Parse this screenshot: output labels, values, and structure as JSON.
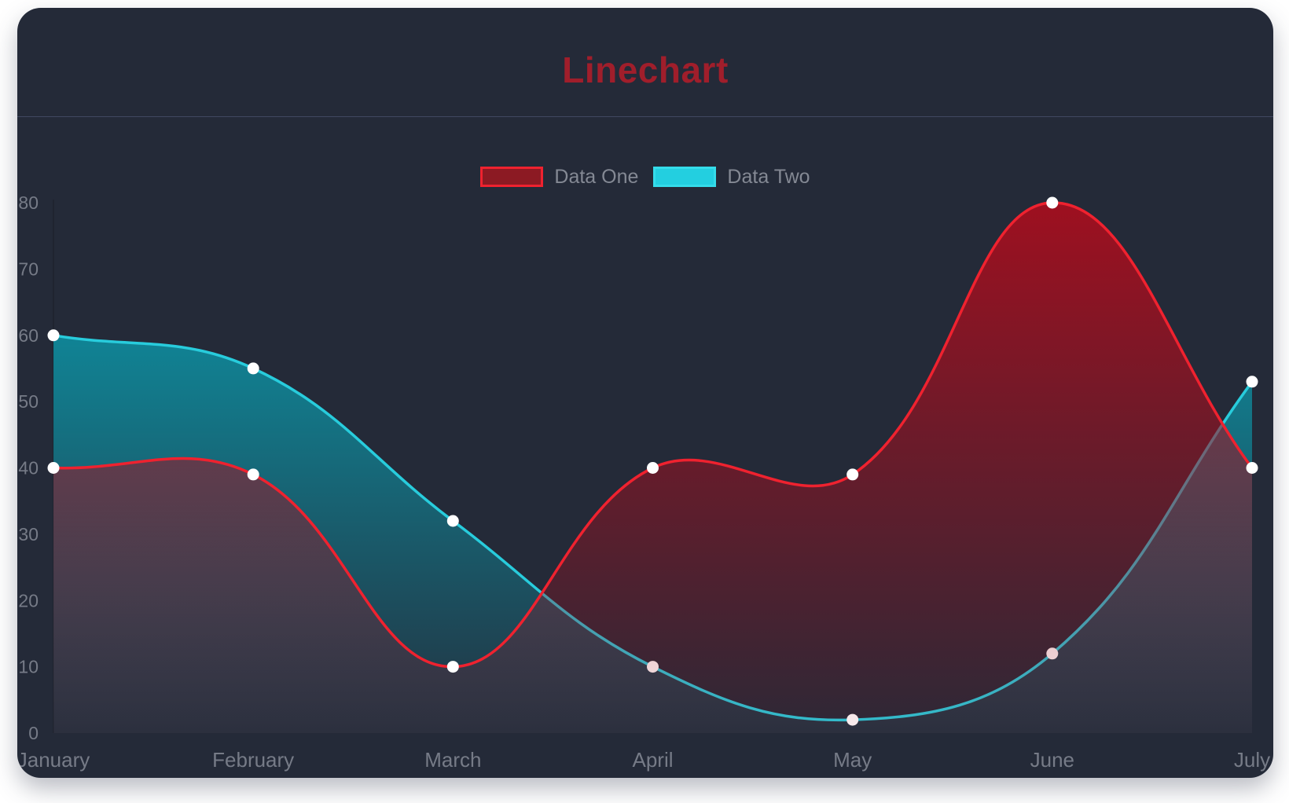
{
  "card": {
    "title": "Linechart",
    "colors": {
      "page_background": "#ffffff",
      "card_background": "#242a38",
      "title": "#a01e2b",
      "divider": "#414861",
      "axis_label": "#767b87",
      "legend_label": "#848994",
      "axis_line": "rgba(0,0,0,0.28)",
      "point": "#ffffff"
    }
  },
  "legend": {
    "items": [
      {
        "label": "Data One",
        "swatch_fill": "#8c1a23",
        "swatch_border": "#ef222f"
      },
      {
        "label": "Data Two",
        "swatch_fill": "#23cfe0",
        "swatch_border": "#35dcea"
      }
    ]
  },
  "chart_data": {
    "type": "line",
    "title": "Linechart",
    "categories": [
      "January",
      "February",
      "March",
      "April",
      "May",
      "June",
      "July"
    ],
    "series": [
      {
        "name": "Data One",
        "values": [
          40,
          39,
          10,
          40,
          39,
          80,
          40
        ],
        "line_color": "#ef222f",
        "area_top": "rgba(167,14,30,0.93)",
        "area_bottom": "rgba(167,14,30,0.07)"
      },
      {
        "name": "Data Two",
        "values": [
          60,
          55,
          32,
          10,
          2,
          12,
          53
        ],
        "line_color": "#28ccdc",
        "area_top": "rgba(0,204,224,0.72)",
        "area_bottom": "rgba(0,204,224,0.05)"
      }
    ],
    "xlabel": "",
    "ylabel": "",
    "ylim": [
      0,
      80
    ],
    "y_ticks": [
      0,
      10,
      20,
      30,
      40,
      50,
      60,
      70,
      80
    ],
    "grid": false,
    "legend_position": "top",
    "curve_tension": 0.4,
    "fill": "origin",
    "point_style": "circle"
  }
}
